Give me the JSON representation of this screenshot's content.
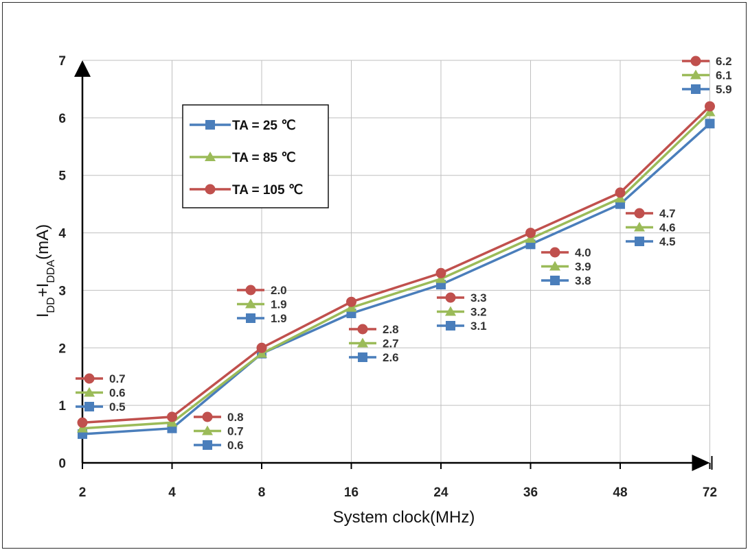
{
  "chart_data": {
    "type": "line",
    "title": "",
    "xlabel": "System clock(MHz)",
    "ylabel": {
      "main": "I",
      "sub1": "DD",
      "plus": "+I",
      "sub2": "DDA",
      "unit": "(mA)"
    },
    "categories": [
      "2",
      "4",
      "8",
      "16",
      "24",
      "36",
      "48",
      "72"
    ],
    "ylim": [
      0,
      7
    ],
    "yticks": [
      0,
      1,
      2,
      3,
      4,
      5,
      6,
      7
    ],
    "grid": true,
    "legend_position": "upper-left",
    "series": [
      {
        "name": "TA = 25 ℃",
        "color": "#4a7ebb",
        "marker": "square",
        "values": [
          0.5,
          0.6,
          1.9,
          2.6,
          3.1,
          3.8,
          4.5,
          5.9
        ],
        "labels": [
          "0.5",
          "0.6",
          "1.9",
          "2.6",
          "3.1",
          "3.8",
          "4.5",
          "5.9"
        ]
      },
      {
        "name": "TA = 85 ℃",
        "color": "#9bbb59",
        "marker": "triangle",
        "values": [
          0.6,
          0.7,
          1.9,
          2.7,
          3.2,
          3.9,
          4.6,
          6.1
        ],
        "labels": [
          "0.6",
          "0.7",
          "1.9",
          "2.7",
          "3.2",
          "3.9",
          "4.6",
          "6.1"
        ]
      },
      {
        "name": "TA = 105 ℃",
        "color": "#c0504d",
        "marker": "circle",
        "values": [
          0.7,
          0.8,
          2.0,
          2.8,
          3.3,
          4.0,
          4.7,
          6.2
        ],
        "labels": [
          "0.7",
          "0.8",
          "2.0",
          "2.8",
          "3.3",
          "4.0",
          "4.7",
          "6.2"
        ]
      }
    ]
  }
}
